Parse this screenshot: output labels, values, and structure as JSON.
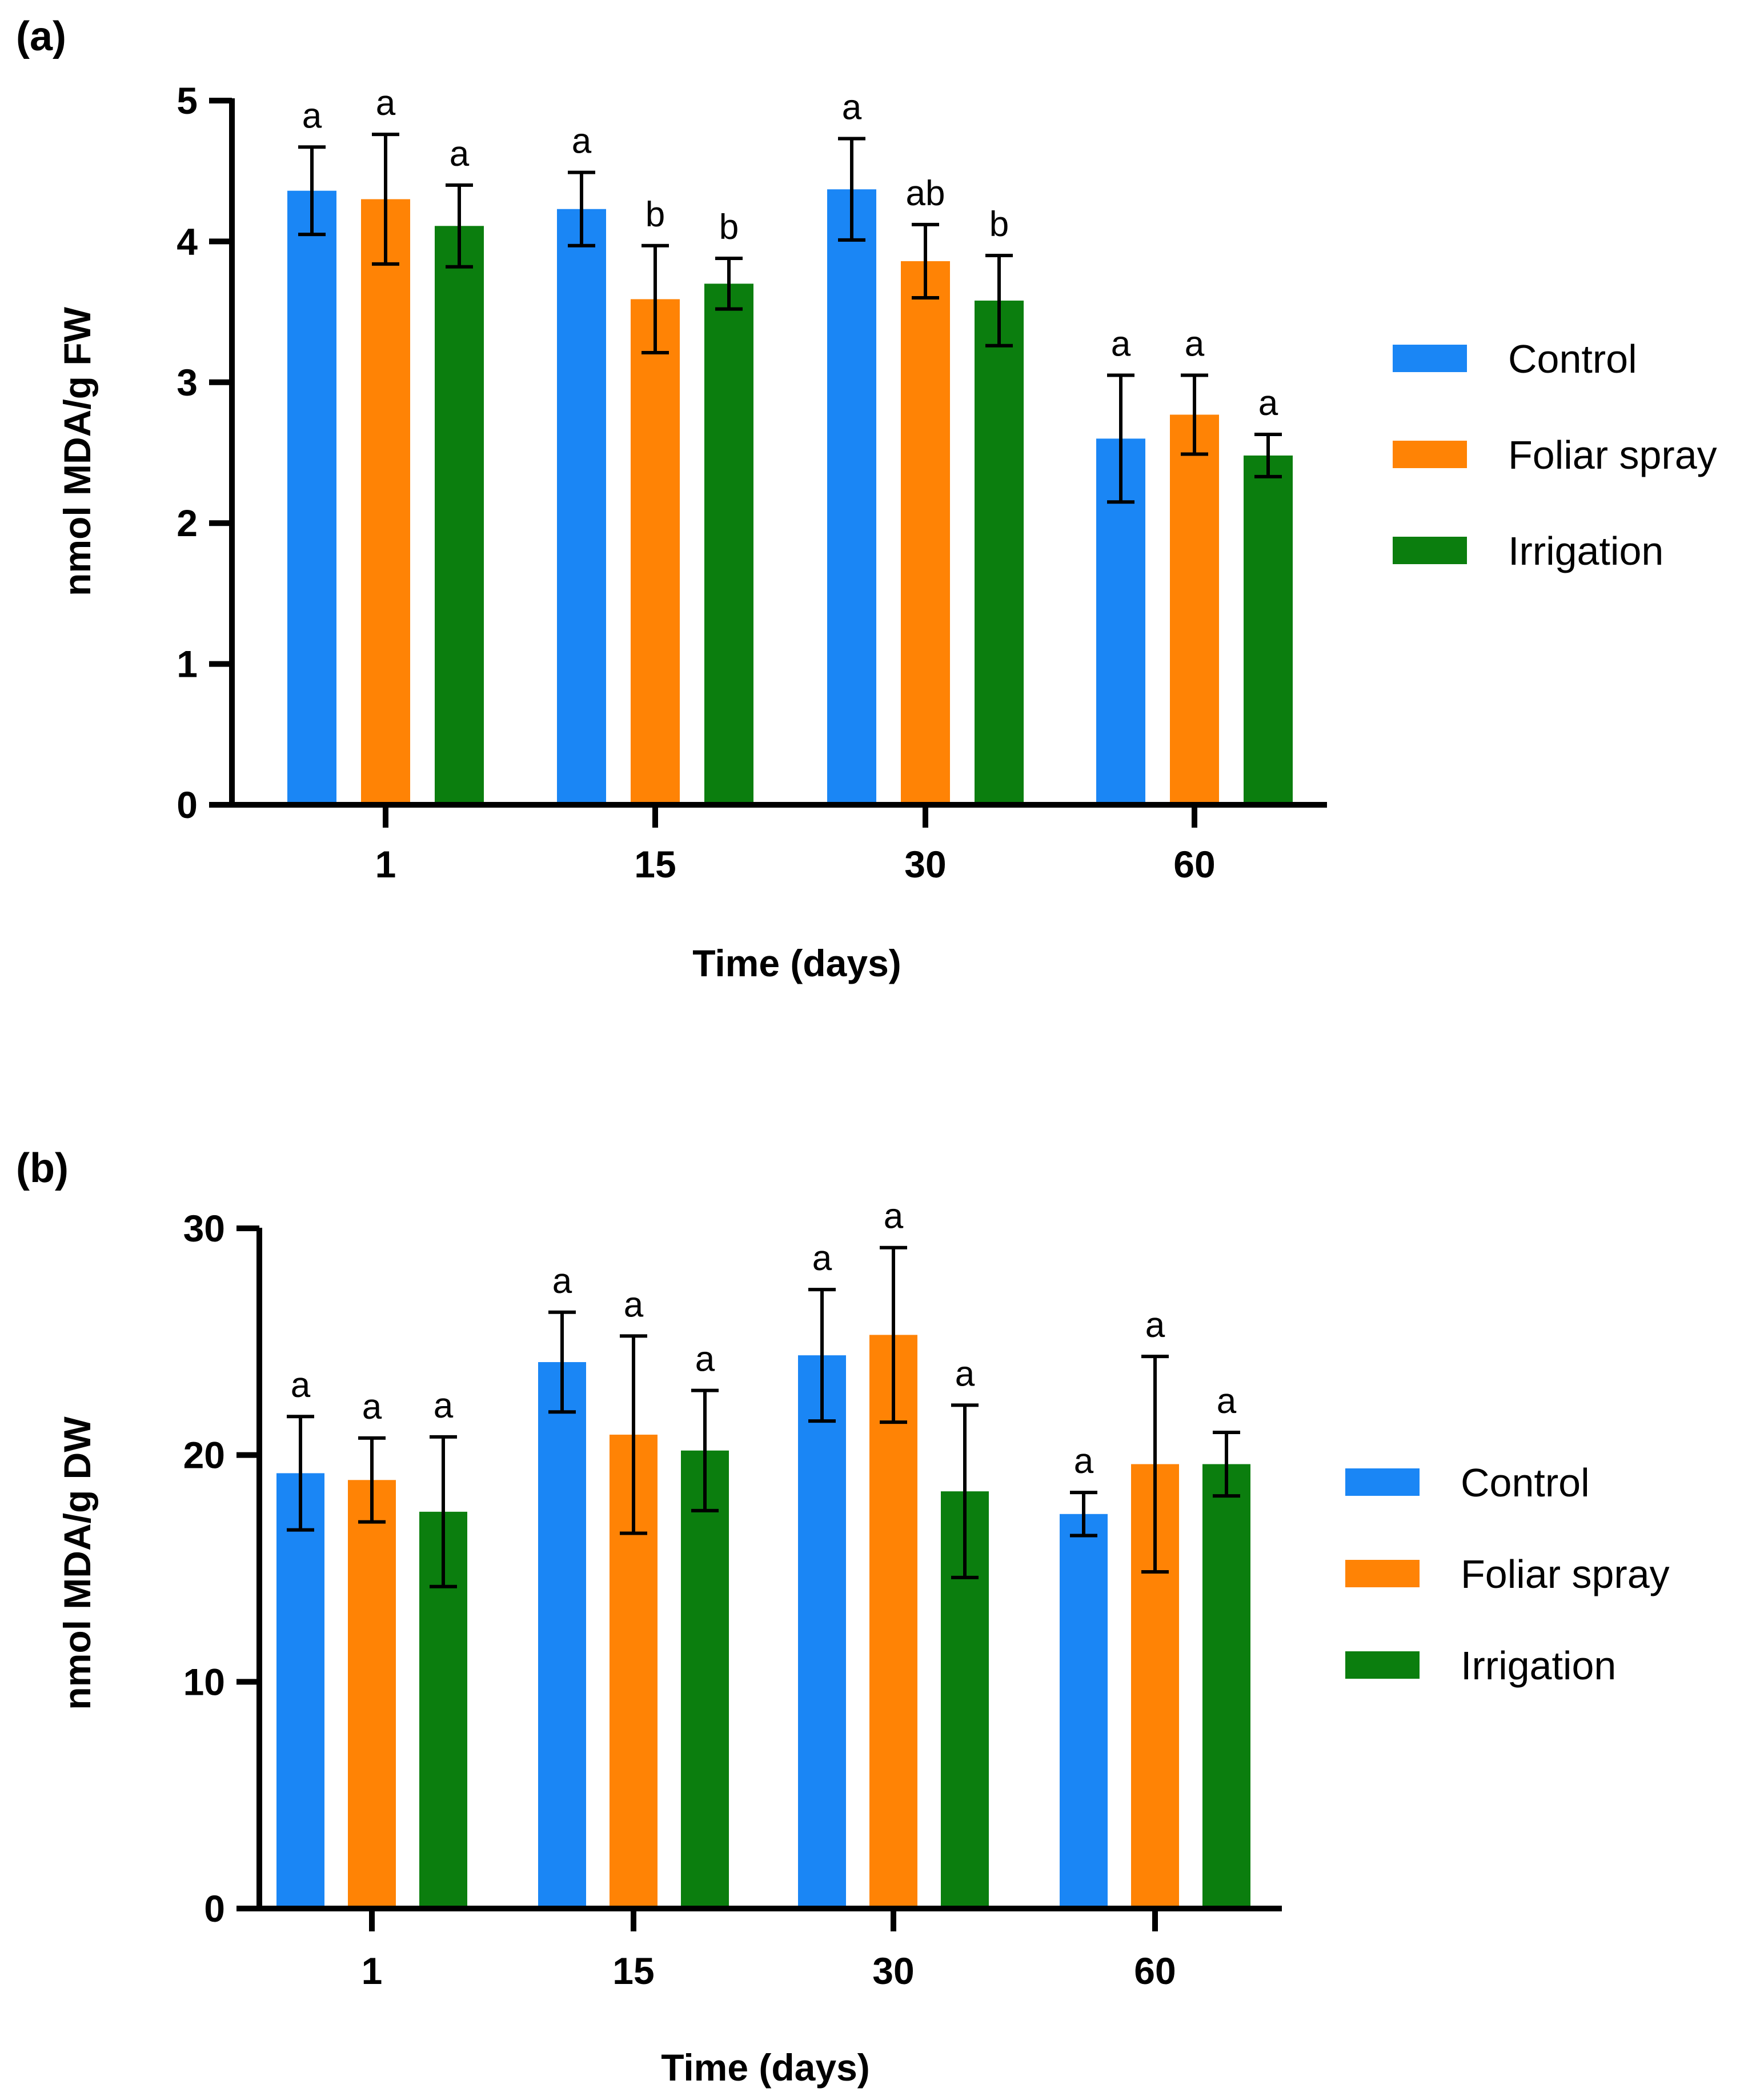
{
  "chart_data": [
    {
      "type": "bar",
      "panel_label": "(a)",
      "categories": [
        "1",
        "15",
        "30",
        "60"
      ],
      "xlabel": "Time (days)",
      "ylabel": "nmol MDA/g FW",
      "ylim": [
        0,
        5
      ],
      "yticks": [
        "0",
        "1",
        "2",
        "3",
        "4",
        "5"
      ],
      "legend_position": "right",
      "series": [
        {
          "name": "Control",
          "color": "#1a86f5",
          "values": [
            4.36,
            4.23,
            4.37,
            2.6
          ],
          "errors": [
            0.31,
            0.26,
            0.36,
            0.45
          ],
          "labels": [
            "a",
            "a",
            "a",
            "a"
          ]
        },
        {
          "name": "Foliar spray",
          "color": "#ff8305",
          "values": [
            4.3,
            3.59,
            3.86,
            2.77
          ],
          "errors": [
            0.46,
            0.38,
            0.26,
            0.28
          ],
          "labels": [
            "a",
            "b",
            "ab",
            "a"
          ]
        },
        {
          "name": "Irrigation",
          "color": "#0b7e0e",
          "values": [
            4.11,
            3.7,
            3.58,
            2.48
          ],
          "errors": [
            0.29,
            0.18,
            0.32,
            0.15
          ],
          "labels": [
            "a",
            "b",
            "b",
            "a"
          ]
        }
      ]
    },
    {
      "type": "bar",
      "panel_label": "(b)",
      "categories": [
        "1",
        "15",
        "30",
        "60"
      ],
      "xlabel": "Time (days)",
      "ylabel": "nmol MDA/g DW",
      "ylim": [
        0,
        30
      ],
      "yticks": [
        "0",
        "10",
        "20",
        "30"
      ],
      "legend_position": "right",
      "series": [
        {
          "name": "Control",
          "color": "#1a86f5",
          "values": [
            19.2,
            24.1,
            24.4,
            17.4
          ],
          "errors": [
            2.5,
            2.2,
            2.9,
            0.95
          ],
          "labels": [
            "a",
            "a",
            "a",
            "a"
          ]
        },
        {
          "name": "Foliar spray",
          "color": "#ff8305",
          "values": [
            18.9,
            20.9,
            25.3,
            19.6
          ],
          "errors": [
            1.85,
            4.35,
            3.85,
            4.75
          ],
          "labels": [
            "a",
            "a",
            "a",
            "a"
          ]
        },
        {
          "name": "Irrigation",
          "color": "#0b7e0e",
          "values": [
            17.5,
            20.2,
            18.4,
            19.6
          ],
          "errors": [
            3.3,
            2.65,
            3.8,
            1.4
          ],
          "labels": [
            "a",
            "a",
            "a",
            "a"
          ]
        }
      ]
    }
  ]
}
